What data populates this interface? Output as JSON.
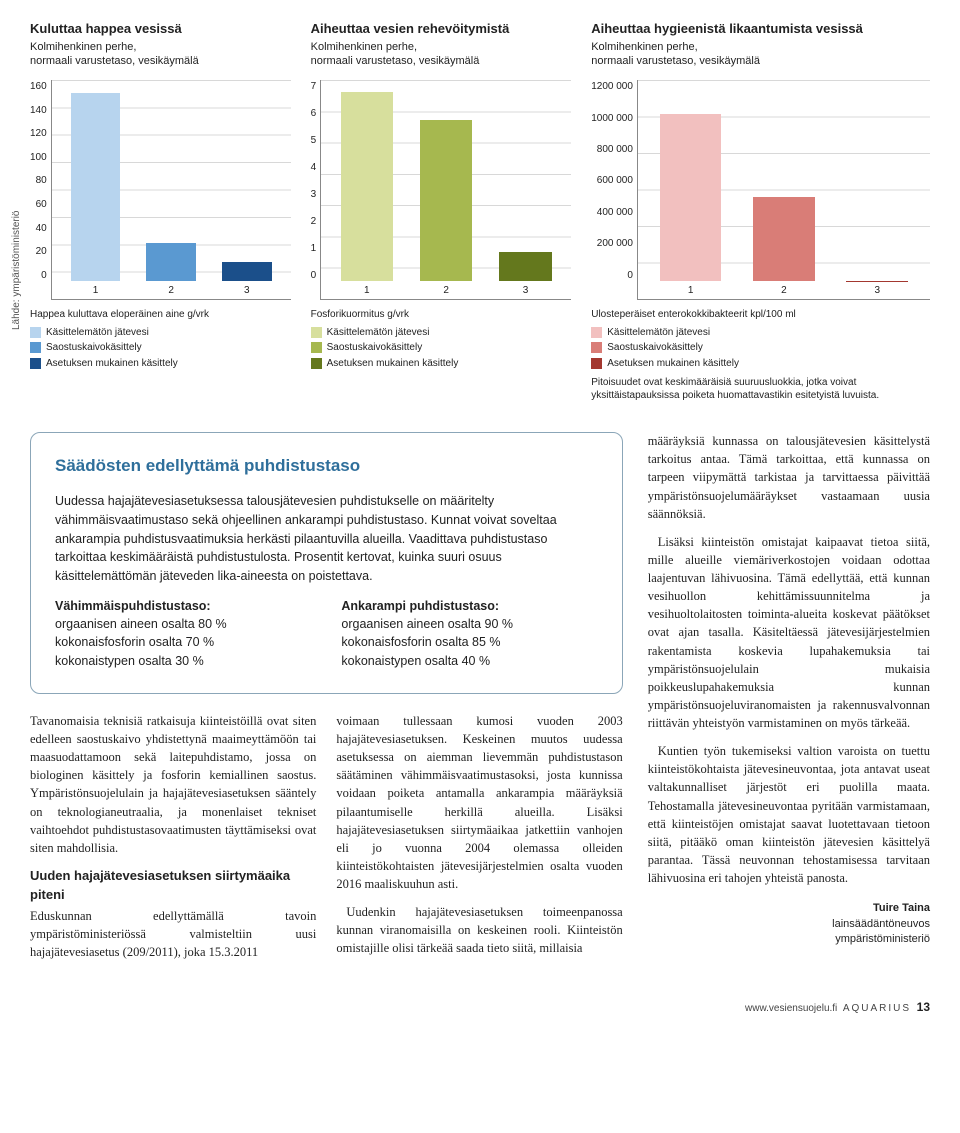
{
  "source_label": "Lähde: ympäristöministeriö",
  "charts": [
    {
      "title": "Kuluttaa happea vesissä",
      "subtitle": "Kolmihenkinen perhe,\nnormaali varustetaso, vesikäymälä",
      "caption": "Happea kuluttava eloperäinen aine g/vrk",
      "ylim": [
        0,
        160
      ],
      "ytick_step": 20,
      "ytick_labels": [
        "0",
        "20",
        "40",
        "60",
        "80",
        "100",
        "120",
        "140",
        "160"
      ],
      "bars": [
        {
          "label": "1",
          "value": 150,
          "color": "#b7d4ee"
        },
        {
          "label": "2",
          "value": 30,
          "color": "#5a99d1"
        },
        {
          "label": "3",
          "value": 15,
          "color": "#1b4f8a"
        }
      ],
      "legend": [
        {
          "color": "#b7d4ee",
          "label": "Käsittelemätön jätevesi"
        },
        {
          "color": "#5a99d1",
          "label": "Saostuskaivokäsittely"
        },
        {
          "color": "#1b4f8a",
          "label": "Asetuksen mukainen käsittely"
        }
      ]
    },
    {
      "title": "Aiheuttaa vesien rehevöitymistä",
      "subtitle": "Kolmihenkinen perhe,\nnormaali varustetaso, vesikäymälä",
      "caption": "Fosforikuormitus g/vrk",
      "ylim": [
        0,
        7
      ],
      "ytick_step": 1,
      "ytick_labels": [
        "0",
        "1",
        "2",
        "3",
        "4",
        "5",
        "6",
        "7"
      ],
      "bars": [
        {
          "label": "1",
          "value": 6.6,
          "color": "#d7df9d"
        },
        {
          "label": "2",
          "value": 5.6,
          "color": "#a6b84f"
        },
        {
          "label": "3",
          "value": 1.0,
          "color": "#64781d"
        }
      ],
      "legend": [
        {
          "color": "#d7df9d",
          "label": "Käsittelemätön jätevesi"
        },
        {
          "color": "#a6b84f",
          "label": "Saostuskaivokäsittely"
        },
        {
          "color": "#64781d",
          "label": "Asetuksen mukainen käsittely"
        }
      ]
    },
    {
      "title": "Aiheuttaa hygieenistä likaantumista vesissä",
      "subtitle": "Kolmihenkinen perhe,\nnormaali varustetaso, vesikäymälä",
      "caption": "Ulosteperäiset enterokokkibakteerit kpl/100 ml",
      "ylim": [
        0,
        1200000
      ],
      "ytick_step": 200000,
      "ytick_labels": [
        "0",
        "200 000",
        "400 000",
        "600 000",
        "800 000",
        "1000 000",
        "1200 000"
      ],
      "bars": [
        {
          "label": "1",
          "value": 1000000,
          "color": "#f2c0bf"
        },
        {
          "label": "2",
          "value": 500000,
          "color": "#d97d77"
        },
        {
          "label": "3",
          "value": 1000,
          "color": "#a3372f"
        }
      ],
      "legend": [
        {
          "color": "#f2c0bf",
          "label": "Käsittelemätön jätevesi"
        },
        {
          "color": "#d97d77",
          "label": "Saostuskaivokäsittely"
        },
        {
          "color": "#a3372f",
          "label": "Asetuksen mukainen käsittely"
        }
      ],
      "note": "Pitoisuudet ovat keskimääräisiä suuruusluokkia, jotka voivat yksittäistapauksissa poiketa huomattavastikin esitetyistä luvuista."
    }
  ],
  "box": {
    "heading": "Säädösten edellyttämä puhdistustaso",
    "intro": "Uudessa hajajätevesiasetuksessa talousjätevesien puhdistukselle on määritelty vähimmäisvaatimustaso sekä ohjeellinen ankarampi puhdistustaso. Kunnat voivat soveltaa ankarampia puhdistusvaatimuksia herkästi pilaantuvilla alueilla. Vaadittava puhdistustaso tarkoittaa keskimääräistä puhdistustulosta. Prosentit kertovat, kuinka suuri osuus käsittelemättömän jäteveden lika-aineesta on poistettava.",
    "cols": [
      {
        "title": "Vähimmäispuhdistustaso:",
        "lines": [
          "orgaanisen aineen osalta 80 %",
          "kokonaisfosforin osalta 70 %",
          "kokonaistypen osalta 30 %"
        ]
      },
      {
        "title": "Ankarampi puhdistustaso:",
        "lines": [
          "orgaanisen aineen osalta 90 %",
          "kokonaisfosforin osalta 85 %",
          "kokonaistypen osalta 40 %"
        ]
      }
    ]
  },
  "left_paras": {
    "p1": "Tavanomaisia teknisiä ratkaisuja kiinteistöillä ovat siten edelleen saostuskaivo yhdistettynä maaimeyttämöön tai maasuodattamoon sekä laitepuhdistamo, jossa on biologinen käsittely ja fosforin kemiallinen saostus. Ympäristönsuojelulain ja hajajätevesiasetuksen sääntely on teknologianeutraalia, ja monenlaiset tekniset vaihtoehdot puhdistustasovaatimusten täyttämiseksi ovat siten mahdollisia.",
    "h1": "Uuden hajajätevesiasetuksen siirtymäaika piteni",
    "p2": "Eduskunnan edellyttämällä tavoin ympäristöministeriössä valmisteltiin uusi hajajätevesiasetus (209/2011), joka 15.3.2011",
    "p3": "voimaan tullessaan kumosi vuoden 2003 hajajätevesiasetuksen. Keskeinen muutos uudessa asetuksessa on aiemman lievemmän puhdistustason säätäminen vähimmäisvaatimustasoksi, josta kunnissa voidaan poiketa antamalla ankarampia määräyksiä pilaantumiselle herkillä alueilla. Lisäksi hajajätevesiasetuksen siirtymäaikaa jatkettiin vanhojen eli jo vuonna 2004 olemassa olleiden kiinteistökohtaisten jätevesijärjestelmien osalta vuoden 2016 maaliskuuhun asti.",
    "p4": "Uudenkin hajajätevesiasetuksen toimeenpanossa kunnan viranomaisilla on keskeinen rooli. Kiinteistön omistajille olisi tärkeää saada tieto siitä, millaisia"
  },
  "right_paras": {
    "p1": "määräyksiä kunnassa on talousjätevesien käsittelystä tarkoitus antaa. Tämä tarkoittaa, että kunnassa on tarpeen viipymättä tarkistaa ja tarvittaessa päivittää ympäristönsuojelumääräykset vastaamaan uusia säännöksiä.",
    "p2": "Lisäksi kiinteistön omistajat kaipaavat tietoa siitä, mille alueille viemäriverkostojen voidaan odottaa laajentuvan lähivuosina. Tämä edellyttää, että kunnan vesihuollon kehittämissuunnitelma ja vesihuoltolaitosten toiminta-alueita koskevat päätökset ovat ajan tasalla. Käsiteltäessä jätevesijärjestelmien rakentamista koskevia lupahakemuksia tai ympäristönsuojelulain mukaisia poikkeuslupahakemuksia kunnan ympäristönsuojeluviranomaisten ja rakennusvalvonnan riittävän yhteistyön varmistaminen on myös tärkeää.",
    "p3": "Kuntien työn tukemiseksi valtion varoista on tuettu kiinteistökohtaista jätevesineuvontaa, jota antavat useat valtakunnalliset järjestöt eri puolilla maata. Tehostamalla jätevesineuvontaa pyritään varmistamaan, että kiinteistöjen omistajat saavat luotettavaan tietoon siitä, pitääkö oman kiinteistön jätevesien käsittelyä parantaa. Tässä neuvonnan tehostamisessa tarvitaan lähivuosina eri tahojen yhteistä panosta."
  },
  "author": {
    "name": "Tuire Taina",
    "title": "lainsäädäntöneuvos",
    "org": "ympäristöministeriö"
  },
  "footer": {
    "url": "www.vesiensuojelu.fi",
    "mag": "AQUARIUS",
    "page": "13"
  }
}
